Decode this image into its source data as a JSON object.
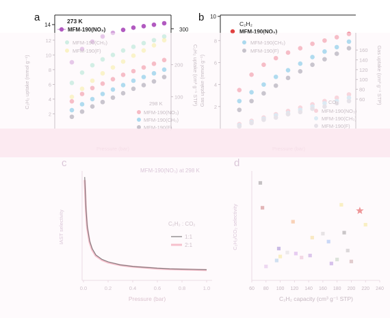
{
  "chart_data": [
    {
      "panel": "a",
      "type": "scatter",
      "top_strip": {
        "temperature": "273 K",
        "legend": [
          "MFM-190(NO₃)"
        ],
        "yticks": [
          14
        ]
      },
      "xlabel": "Pressure (bar)",
      "ylabel": "C₂H₂ uptake (mmol g⁻¹)",
      "y2label": "C₂H₂ uptake (cm³ g⁻¹ STP)",
      "ylim": [
        0,
        13
      ],
      "y2lim": [
        0,
        300
      ],
      "yticks": [
        2,
        4,
        6,
        8,
        10,
        12
      ],
      "y2ticks": [
        100,
        200,
        300
      ],
      "legend_273": [
        "MFM-190(CH₃)",
        "MFM-190(F)"
      ],
      "legend_298_title": "298 K",
      "legend_298": [
        "MFM-190(NO₃)",
        "MFM-190(CH₃)",
        "MFM-190(F)"
      ],
      "series": [
        {
          "name": "MFM-190(NO₃)",
          "temp": "273 K",
          "color": "#b15ac0",
          "x": [
            0.1,
            0.2,
            0.3,
            0.4,
            0.5,
            0.6,
            0.7,
            0.8,
            0.9,
            1.0
          ],
          "values": [
            9.0,
            10.8,
            11.8,
            12.5,
            13.0,
            13.4,
            13.7,
            13.9,
            14.1,
            14.3
          ]
        },
        {
          "name": "MFM-190(CH₃)",
          "temp": "273 K",
          "color": "#6fd8b4",
          "x": [
            0.1,
            0.2,
            0.3,
            0.4,
            0.5,
            0.6,
            0.7,
            0.8,
            0.9,
            1.0
          ],
          "values": [
            6.2,
            7.6,
            8.6,
            9.4,
            10.0,
            10.6,
            11.1,
            11.6,
            12.0,
            12.5
          ]
        },
        {
          "name": "MFM-190(F)",
          "temp": "273 K",
          "color": "#f3e85a",
          "x": [
            0.1,
            0.2,
            0.3,
            0.4,
            0.5,
            0.6,
            0.7,
            0.8,
            0.9,
            1.0
          ],
          "values": [
            4.3,
            5.4,
            6.5,
            7.5,
            8.3,
            9.1,
            9.9,
            10.6,
            11.3,
            12.0
          ]
        },
        {
          "name": "MFM-190(NO₃)",
          "temp": "298 K",
          "color": "#f08a9a",
          "x": [
            0.1,
            0.2,
            0.3,
            0.4,
            0.5,
            0.6,
            0.7,
            0.8,
            0.9,
            1.0
          ],
          "values": [
            3.7,
            4.7,
            5.5,
            6.1,
            6.7,
            7.3,
            7.8,
            8.3,
            8.8,
            9.3
          ]
        },
        {
          "name": "MFM-190(CH₃)",
          "temp": "298 K",
          "color": "#69c4e6",
          "x": [
            0.1,
            0.2,
            0.3,
            0.4,
            0.5,
            0.6,
            0.7,
            0.8,
            0.9,
            1.0
          ],
          "values": [
            2.5,
            3.3,
            4.0,
            4.7,
            5.3,
            5.9,
            6.5,
            7.0,
            7.5,
            8.0
          ]
        },
        {
          "name": "MFM-190(F)",
          "temp": "298 K",
          "color": "#9a9aa6",
          "x": [
            0.1,
            0.2,
            0.3,
            0.4,
            0.5,
            0.6,
            0.7,
            0.8,
            0.9,
            1.0
          ],
          "values": [
            1.6,
            2.3,
            3.0,
            3.6,
            4.2,
            4.8,
            5.4,
            5.9,
            6.4,
            7.0
          ]
        }
      ]
    },
    {
      "panel": "b",
      "type": "scatter",
      "top_strip": {
        "gas": "C₂H₂",
        "legend": [
          "MFM-190(NO₃)"
        ],
        "yticks": [
          10
        ]
      },
      "xlabel": "Pressure (bar)",
      "ylabel": "Gas uptake (mmol g⁻¹)",
      "y2label": "Gas uptake (cm³ g⁻¹ STP)",
      "ylim": [
        0,
        8.7
      ],
      "y2lim": [
        0,
        195
      ],
      "yticks": [
        2,
        4,
        6,
        8
      ],
      "y2ticks": [
        60,
        80,
        100,
        120,
        140,
        160
      ],
      "legend_top": [
        "MFM-190(CH₃)",
        "MFM-190(F)"
      ],
      "legend_co2_title": "CO₂",
      "legend_co2": [
        "MFM-190(NO₃)",
        "MFM-190(CH₃)",
        "MFM-190(F)"
      ],
      "series": [
        {
          "name": "MFM-190(NO₃)",
          "gas": "C₂H₂",
          "color": "#f08a9a",
          "x": [
            0.1,
            0.2,
            0.3,
            0.4,
            0.5,
            0.6,
            0.7,
            0.8,
            0.9,
            1.0
          ],
          "values": [
            3.5,
            4.9,
            5.8,
            6.4,
            6.9,
            7.3,
            7.7,
            8.0,
            8.3,
            8.6
          ]
        },
        {
          "name": "MFM-190(CH₃)",
          "gas": "C₂H₂",
          "color": "#69c4e6",
          "x": [
            0.1,
            0.2,
            0.3,
            0.4,
            0.5,
            0.6,
            0.7,
            0.8,
            0.9,
            1.0
          ],
          "values": [
            2.5,
            3.3,
            4.0,
            4.7,
            5.3,
            5.9,
            6.5,
            7.0,
            7.4,
            7.9
          ]
        },
        {
          "name": "MFM-190(F)",
          "gas": "C₂H₂",
          "color": "#9a9aa6",
          "x": [
            0.1,
            0.2,
            0.3,
            0.4,
            0.5,
            0.6,
            0.7,
            0.8,
            0.9,
            1.0
          ],
          "values": [
            1.7,
            2.5,
            3.2,
            3.9,
            4.6,
            5.2,
            5.8,
            6.3,
            6.8,
            7.3
          ]
        },
        {
          "name": "MFM-190(NO₃)",
          "gas": "CO₂",
          "color": "#f3b9c3",
          "x": [
            0.1,
            0.2,
            0.3,
            0.4,
            0.5,
            0.6,
            0.7,
            0.8,
            0.9,
            1.0
          ],
          "values": [
            0.4,
            0.7,
            1.0,
            1.3,
            1.6,
            1.9,
            2.2,
            2.5,
            2.8,
            3.1
          ]
        },
        {
          "name": "MFM-190(CH₃)",
          "gas": "CO₂",
          "color": "#bfe3f0",
          "x": [
            0.1,
            0.2,
            0.3,
            0.4,
            0.5,
            0.6,
            0.7,
            0.8,
            0.9,
            1.0
          ],
          "values": [
            0.3,
            0.6,
            0.9,
            1.2,
            1.4,
            1.7,
            2.0,
            2.3,
            2.5,
            2.8
          ]
        },
        {
          "name": "MFM-190(F)",
          "gas": "CO₂",
          "color": "#d4d4da",
          "x": [
            0.1,
            0.2,
            0.3,
            0.4,
            0.5,
            0.6,
            0.7,
            0.8,
            0.9,
            1.0
          ],
          "values": [
            0.2,
            0.5,
            0.8,
            1.0,
            1.3,
            1.5,
            1.8,
            2.0,
            2.3,
            2.5
          ]
        }
      ]
    },
    {
      "panel": "c",
      "type": "line",
      "title": "MFM-190(NO₃) at 298 K",
      "xlabel": "Pressure (bar)",
      "ylabel": "IAST selectivity",
      "xlim": [
        0,
        1.0
      ],
      "xticks": [
        "0.0",
        "0.2",
        "0.4",
        "0.6",
        "0.8",
        "1.0"
      ],
      "legend_title": "C₂H₂ : CO₂",
      "series": [
        {
          "name": "1:1",
          "color": "#3a3a3a",
          "x": [
            0.01,
            0.02,
            0.03,
            0.05,
            0.07,
            0.1,
            0.15,
            0.2,
            0.3,
            0.4,
            0.5,
            0.6,
            0.7,
            0.8,
            0.9,
            1.0
          ],
          "values": [
            34,
            24,
            18,
            13,
            10.5,
            8.4,
            6.9,
            6.1,
            5.1,
            4.6,
            4.3,
            4.0,
            3.8,
            3.7,
            3.6,
            3.5
          ]
        },
        {
          "name": "2:1",
          "color": "#f3a6b6",
          "x": [
            0.01,
            0.02,
            0.03,
            0.05,
            0.07,
            0.1,
            0.15,
            0.2,
            0.3,
            0.4,
            0.5,
            0.6,
            0.7,
            0.8,
            0.9,
            1.0
          ],
          "values": [
            33,
            23,
            17.3,
            12.5,
            10.1,
            8.1,
            6.7,
            5.9,
            5.0,
            4.5,
            4.2,
            3.9,
            3.7,
            3.6,
            3.5,
            3.4
          ]
        }
      ],
      "ylim": [
        0,
        36
      ]
    },
    {
      "panel": "d",
      "type": "scatter",
      "xlabel": "C₂H₂ capacity (cm³ g⁻¹ STP)",
      "ylabel": "C₂H₂/CO₂ selectivity",
      "xlim": [
        60,
        240
      ],
      "xticks": [
        60,
        80,
        100,
        120,
        140,
        160,
        180,
        200,
        220,
        240
      ],
      "ylim": [
        1,
        12
      ],
      "points": [
        {
          "x": 72,
          "y": 10.8,
          "label": "",
          "color": "#606060"
        },
        {
          "x": 75,
          "y": 8.3,
          "label": "",
          "color": "#b04040"
        },
        {
          "x": 80,
          "y": 2.4,
          "label": "",
          "color": "#cfa0e0"
        },
        {
          "x": 95,
          "y": 3.0,
          "label": "",
          "color": "#7fb8e0"
        },
        {
          "x": 98,
          "y": 4.2,
          "label": "",
          "color": "#7050c0"
        },
        {
          "x": 100,
          "y": 3.4,
          "label": "",
          "color": "#f0e060"
        },
        {
          "x": 110,
          "y": 3.8,
          "label": "",
          "color": "#d0d0d0"
        },
        {
          "x": 118,
          "y": 6.9,
          "label": "",
          "color": "#f09040"
        },
        {
          "x": 122,
          "y": 3.7,
          "label": "",
          "color": "#c080e0"
        },
        {
          "x": 130,
          "y": 3.3,
          "label": "",
          "color": "#e0a0c0"
        },
        {
          "x": 142,
          "y": 3.5,
          "label": "",
          "color": "#a070d0"
        },
        {
          "x": 145,
          "y": 5.3,
          "label": "",
          "color": "#f0d060"
        },
        {
          "x": 160,
          "y": 5.7,
          "label": "",
          "color": "#c0c0c0"
        },
        {
          "x": 168,
          "y": 4.9,
          "label": "",
          "color": "#70a0f0"
        },
        {
          "x": 172,
          "y": 2.7,
          "label": "",
          "color": "#9060d0"
        },
        {
          "x": 180,
          "y": 3.1,
          "label": "",
          "color": "#a0c0a0"
        },
        {
          "x": 186,
          "y": 8.6,
          "label": "",
          "color": "#f0e060"
        },
        {
          "x": 190,
          "y": 5.8,
          "label": "",
          "color": "#707070"
        },
        {
          "x": 195,
          "y": 4.0,
          "label": "",
          "color": "#a0a0a0"
        },
        {
          "x": 200,
          "y": 2.9,
          "label": "",
          "color": "#b08080"
        },
        {
          "x": 212,
          "y": 8.0,
          "label": "",
          "color": "#e04040",
          "star": true
        },
        {
          "x": 220,
          "y": 6.6,
          "label": "",
          "color": "#f0e060"
        }
      ]
    }
  ],
  "panel_labels": {
    "a": "a",
    "b": "b",
    "c": "c",
    "d": "d"
  },
  "panel_c_xlabel_text": "Pressure (bar)"
}
